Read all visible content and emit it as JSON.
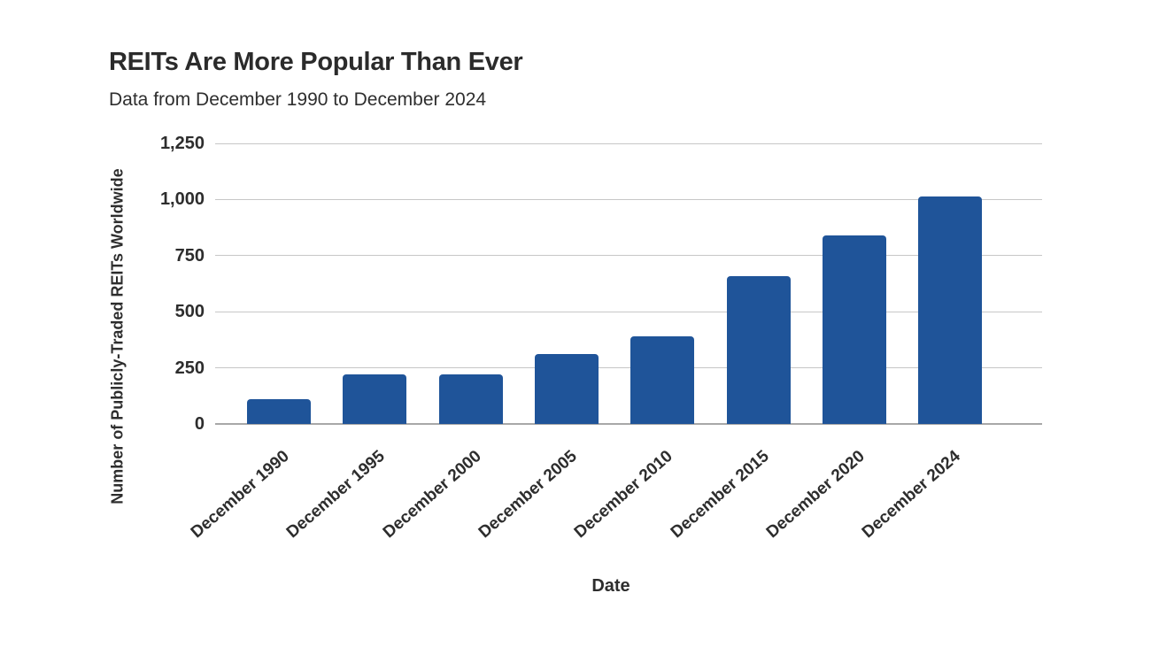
{
  "chart_data": {
    "type": "bar",
    "title": "REITs Are More Popular Than Ever",
    "subtitle": "Data from December 1990 to December 2024",
    "xlabel": "Date",
    "ylabel": "Number of Publicly-Traded REITs Worldwide",
    "categories": [
      "December 1990",
      "December 1995",
      "December 2000",
      "December 2005",
      "December 2010",
      "December 2015",
      "December 2020",
      "December 2024"
    ],
    "values": [
      110,
      220,
      220,
      310,
      390,
      660,
      840,
      1015
    ],
    "ylim": [
      0,
      1250
    ],
    "yticks": [
      0,
      250,
      500,
      750,
      1000,
      1250
    ],
    "ytick_labels": [
      "0",
      "250",
      "500",
      "750",
      "1,000",
      "1,250"
    ],
    "grid": "horizontal gridlines on, no vertical gridlines",
    "legend": "none",
    "bar_color": "#1f5499"
  },
  "colors": {
    "background": "#ffffff",
    "bar": "#1f5499",
    "text": "#2d2d2d",
    "gridline": "#c7c7c7",
    "baseline": "#a8a8a8"
  }
}
